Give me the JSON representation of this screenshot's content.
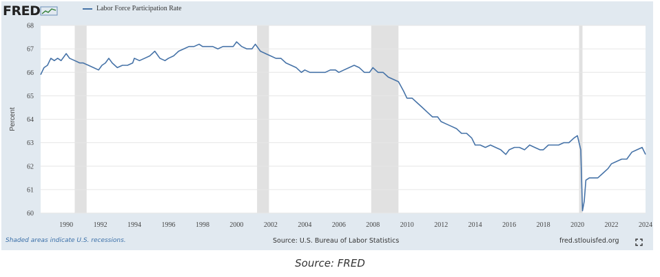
{
  "header": {
    "logo_text": "FRED",
    "legend_label": "Labor Force Participation Rate"
  },
  "footer": {
    "recession_note": "Shaded areas indicate U.S. recessions.",
    "source": "Source: U.S. Bureau of Labor Statistics",
    "url": "fred.stlouisfed.org"
  },
  "caption": "Source: FRED",
  "colors": {
    "line": "#4572a7",
    "frame_bg": "#e1e9f0",
    "plot_bg": "#ffffff",
    "recession_shade": "#e1e1e1"
  },
  "icons": {
    "logo_graph": "line-graph-icon",
    "expand": "expand-icon"
  },
  "chart_data": {
    "type": "line",
    "title": "",
    "xlabel": "",
    "ylabel": "Percent",
    "xlim": [
      1988.5,
      2024.0
    ],
    "ylim": [
      60,
      68
    ],
    "x_ticks": [
      "1990",
      "1992",
      "1994",
      "1996",
      "1998",
      "2000",
      "2002",
      "2004",
      "2006",
      "2008",
      "2010",
      "2012",
      "2014",
      "2016",
      "2018",
      "2020",
      "2022",
      "2024"
    ],
    "y_ticks": [
      "60",
      "61",
      "62",
      "63",
      "64",
      "65",
      "66",
      "67",
      "68"
    ],
    "grid": "horizontal",
    "legend_position": "top-left",
    "recessions": [
      [
        1990.5,
        1991.2
      ],
      [
        2001.2,
        2001.9
      ],
      [
        2007.9,
        2009.5
      ],
      [
        2020.1,
        2020.3
      ]
    ],
    "series": [
      {
        "name": "Labor Force Participation Rate",
        "points": [
          [
            1988.5,
            65.9
          ],
          [
            1988.7,
            66.2
          ],
          [
            1988.9,
            66.3
          ],
          [
            1989.1,
            66.6
          ],
          [
            1989.3,
            66.5
          ],
          [
            1989.5,
            66.6
          ],
          [
            1989.7,
            66.5
          ],
          [
            1990.0,
            66.8
          ],
          [
            1990.2,
            66.6
          ],
          [
            1990.5,
            66.5
          ],
          [
            1990.8,
            66.4
          ],
          [
            1991.0,
            66.4
          ],
          [
            1991.3,
            66.3
          ],
          [
            1991.6,
            66.2
          ],
          [
            1991.9,
            66.1
          ],
          [
            1992.1,
            66.3
          ],
          [
            1992.3,
            66.4
          ],
          [
            1992.5,
            66.6
          ],
          [
            1992.7,
            66.4
          ],
          [
            1993.0,
            66.2
          ],
          [
            1993.3,
            66.3
          ],
          [
            1993.6,
            66.3
          ],
          [
            1993.9,
            66.4
          ],
          [
            1994.0,
            66.6
          ],
          [
            1994.3,
            66.5
          ],
          [
            1994.6,
            66.6
          ],
          [
            1994.9,
            66.7
          ],
          [
            1995.2,
            66.9
          ],
          [
            1995.5,
            66.6
          ],
          [
            1995.8,
            66.5
          ],
          [
            1996.0,
            66.6
          ],
          [
            1996.3,
            66.7
          ],
          [
            1996.6,
            66.9
          ],
          [
            1996.9,
            67.0
          ],
          [
            1997.2,
            67.1
          ],
          [
            1997.5,
            67.1
          ],
          [
            1997.8,
            67.2
          ],
          [
            1998.0,
            67.1
          ],
          [
            1998.3,
            67.1
          ],
          [
            1998.6,
            67.1
          ],
          [
            1998.9,
            67.0
          ],
          [
            1999.2,
            67.1
          ],
          [
            1999.5,
            67.1
          ],
          [
            1999.8,
            67.1
          ],
          [
            2000.0,
            67.3
          ],
          [
            2000.3,
            67.1
          ],
          [
            2000.6,
            67.0
          ],
          [
            2000.9,
            67.0
          ],
          [
            2001.1,
            67.2
          ],
          [
            2001.4,
            66.9
          ],
          [
            2001.7,
            66.8
          ],
          [
            2002.0,
            66.7
          ],
          [
            2002.3,
            66.6
          ],
          [
            2002.6,
            66.6
          ],
          [
            2002.9,
            66.4
          ],
          [
            2003.2,
            66.3
          ],
          [
            2003.5,
            66.2
          ],
          [
            2003.8,
            66.0
          ],
          [
            2004.0,
            66.1
          ],
          [
            2004.3,
            66.0
          ],
          [
            2004.6,
            66.0
          ],
          [
            2004.9,
            66.0
          ],
          [
            2005.2,
            66.0
          ],
          [
            2005.5,
            66.1
          ],
          [
            2005.8,
            66.1
          ],
          [
            2006.0,
            66.0
          ],
          [
            2006.3,
            66.1
          ],
          [
            2006.6,
            66.2
          ],
          [
            2006.9,
            66.3
          ],
          [
            2007.2,
            66.2
          ],
          [
            2007.5,
            66.0
          ],
          [
            2007.8,
            66.0
          ],
          [
            2008.0,
            66.2
          ],
          [
            2008.3,
            66.0
          ],
          [
            2008.6,
            66.0
          ],
          [
            2008.9,
            65.8
          ],
          [
            2009.2,
            65.7
          ],
          [
            2009.5,
            65.6
          ],
          [
            2009.8,
            65.2
          ],
          [
            2010.0,
            64.9
          ],
          [
            2010.3,
            64.9
          ],
          [
            2010.6,
            64.7
          ],
          [
            2010.9,
            64.5
          ],
          [
            2011.2,
            64.3
          ],
          [
            2011.5,
            64.1
          ],
          [
            2011.8,
            64.1
          ],
          [
            2012.0,
            63.9
          ],
          [
            2012.3,
            63.8
          ],
          [
            2012.6,
            63.7
          ],
          [
            2012.9,
            63.6
          ],
          [
            2013.2,
            63.4
          ],
          [
            2013.5,
            63.4
          ],
          [
            2013.8,
            63.2
          ],
          [
            2014.0,
            62.9
          ],
          [
            2014.3,
            62.9
          ],
          [
            2014.6,
            62.8
          ],
          [
            2014.9,
            62.9
          ],
          [
            2015.2,
            62.8
          ],
          [
            2015.5,
            62.7
          ],
          [
            2015.8,
            62.5
          ],
          [
            2016.0,
            62.7
          ],
          [
            2016.3,
            62.8
          ],
          [
            2016.6,
            62.8
          ],
          [
            2016.9,
            62.7
          ],
          [
            2017.2,
            62.9
          ],
          [
            2017.5,
            62.8
          ],
          [
            2017.8,
            62.7
          ],
          [
            2018.0,
            62.7
          ],
          [
            2018.3,
            62.9
          ],
          [
            2018.6,
            62.9
          ],
          [
            2018.9,
            62.9
          ],
          [
            2019.2,
            63.0
          ],
          [
            2019.5,
            63.0
          ],
          [
            2019.8,
            63.2
          ],
          [
            2020.0,
            63.3
          ],
          [
            2020.2,
            62.7
          ],
          [
            2020.3,
            60.1
          ],
          [
            2020.4,
            60.5
          ],
          [
            2020.5,
            61.4
          ],
          [
            2020.7,
            61.5
          ],
          [
            2020.9,
            61.5
          ],
          [
            2021.2,
            61.5
          ],
          [
            2021.5,
            61.7
          ],
          [
            2021.8,
            61.9
          ],
          [
            2022.0,
            62.1
          ],
          [
            2022.3,
            62.2
          ],
          [
            2022.6,
            62.3
          ],
          [
            2022.9,
            62.3
          ],
          [
            2023.2,
            62.6
          ],
          [
            2023.5,
            62.7
          ],
          [
            2023.8,
            62.8
          ],
          [
            2024.0,
            62.5
          ]
        ]
      }
    ]
  }
}
